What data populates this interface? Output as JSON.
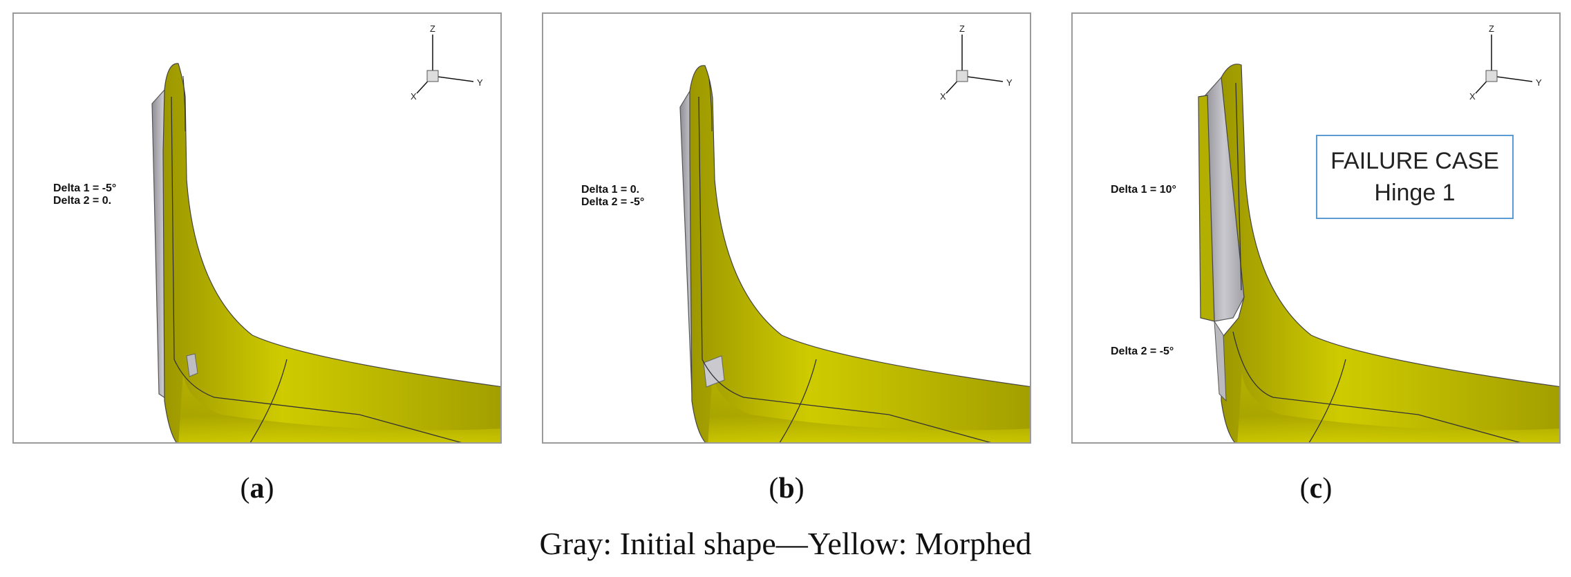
{
  "panels": [
    {
      "id": "a",
      "letter": "a",
      "delta1": "Delta 1 = -5°",
      "delta2": "Delta 2 = 0.",
      "note": null
    },
    {
      "id": "b",
      "letter": "b",
      "delta1": "Delta 1 = 0.",
      "delta2": "Delta 2 = -5°",
      "note": null
    },
    {
      "id": "c",
      "letter": "c",
      "delta1": "Delta 1 = 10°",
      "delta2": "Delta 2 = -5°",
      "note": {
        "line1": "FAILURE CASE",
        "line2": "Hinge 1"
      }
    }
  ],
  "axes": {
    "z": "Z",
    "y": "Y",
    "x": "X"
  },
  "caption": "Gray: Initial shape—Yellow: Morphed",
  "colors": {
    "morphed": "#c8c400",
    "initial": "#b4b4b8",
    "frame": "#9a9a9a",
    "note_border": "#5b9bd5"
  }
}
